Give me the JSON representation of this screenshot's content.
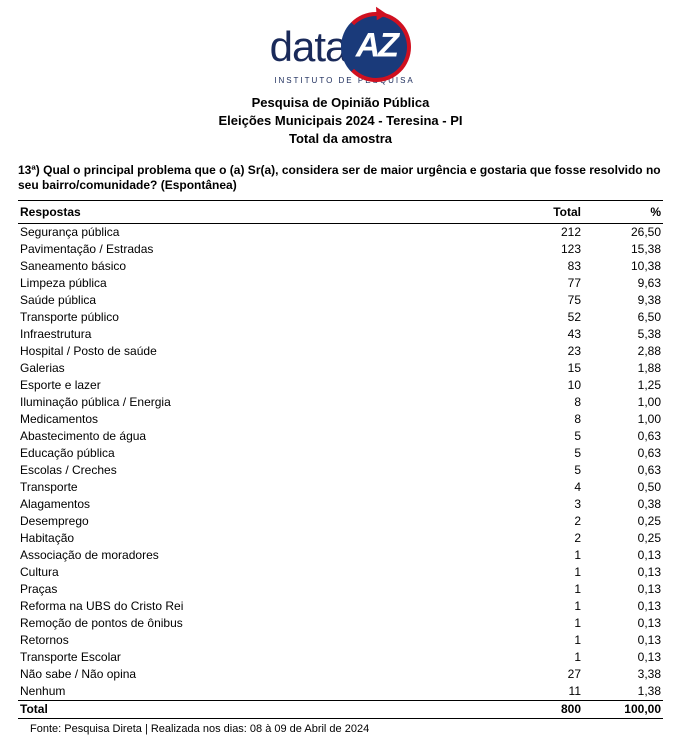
{
  "logo": {
    "word_left": "data",
    "word_circle": "AZ",
    "subtitle": "INSTITUTO DE PESQUISA",
    "text_color": "#1a2a5a",
    "circle_bg": "#1a3a7a",
    "ring_color": "#d01020",
    "az_color": "#ffffff"
  },
  "headings": {
    "line1": "Pesquisa de Opinião Pública",
    "line2": "Eleições Municipais 2024 - Teresina - PI",
    "line3": "Total da amostra"
  },
  "question": "13ª) Qual o principal problema que o (a) Sr(a), considera ser de maior urgência e gostaria que fosse resolvido no seu bairro/comunidade? (Espontânea)",
  "table": {
    "columns": [
      "Respostas",
      "Total",
      "%"
    ],
    "rows": [
      [
        "Segurança pública",
        "212",
        "26,50"
      ],
      [
        "Pavimentação / Estradas",
        "123",
        "15,38"
      ],
      [
        "Saneamento básico",
        "83",
        "10,38"
      ],
      [
        "Limpeza pública",
        "77",
        "9,63"
      ],
      [
        "Saúde pública",
        "75",
        "9,38"
      ],
      [
        "Transporte público",
        "52",
        "6,50"
      ],
      [
        "Infraestrutura",
        "43",
        "5,38"
      ],
      [
        "Hospital / Posto de saúde",
        "23",
        "2,88"
      ],
      [
        "Galerias",
        "15",
        "1,88"
      ],
      [
        "Esporte e lazer",
        "10",
        "1,25"
      ],
      [
        "Iluminação pública / Energia",
        "8",
        "1,00"
      ],
      [
        "Medicamentos",
        "8",
        "1,00"
      ],
      [
        "Abastecimento de água",
        "5",
        "0,63"
      ],
      [
        "Educação pública",
        "5",
        "0,63"
      ],
      [
        "Escolas / Creches",
        "5",
        "0,63"
      ],
      [
        "Transporte",
        "4",
        "0,50"
      ],
      [
        "Alagamentos",
        "3",
        "0,38"
      ],
      [
        "Desemprego",
        "2",
        "0,25"
      ],
      [
        "Habitação",
        "2",
        "0,25"
      ],
      [
        "Associação de moradores",
        "1",
        "0,13"
      ],
      [
        "Cultura",
        "1",
        "0,13"
      ],
      [
        "Praças",
        "1",
        "0,13"
      ],
      [
        "Reforma na UBS do Cristo Rei",
        "1",
        "0,13"
      ],
      [
        "Remoção de pontos de ônibus",
        "1",
        "0,13"
      ],
      [
        "Retornos",
        "1",
        "0,13"
      ],
      [
        "Transporte Escolar",
        "1",
        "0,13"
      ],
      [
        "Não sabe / Não opina",
        "27",
        "3,38"
      ],
      [
        "Nenhum",
        "11",
        "1,38"
      ]
    ],
    "total_row": [
      "Total",
      "800",
      "100,00"
    ],
    "header_border_color": "#000000",
    "font_size": 12
  },
  "footnote": "Fonte: Pesquisa Direta | Realizada nos dias: 08 à 09 de Abril de 2024"
}
